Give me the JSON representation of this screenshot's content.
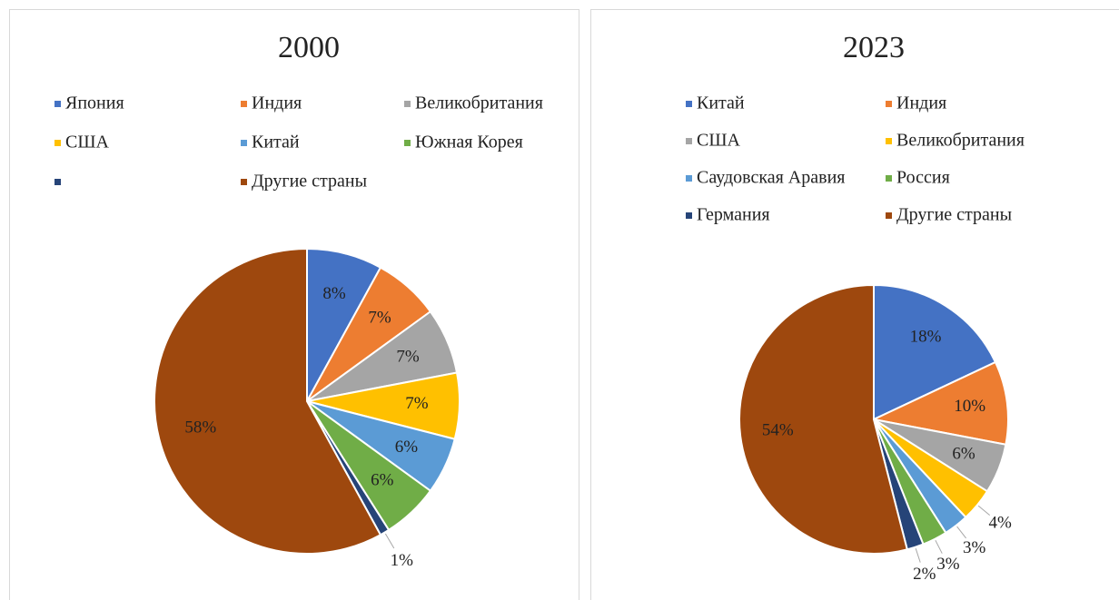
{
  "chart_data": [
    {
      "type": "pie",
      "title": "2000",
      "categories": [
        "Япония",
        "Индия",
        "Великобритания",
        "США",
        "Китай",
        "Южная Корея",
        null,
        "Другие страны"
      ],
      "values": [
        8,
        7,
        7,
        7,
        6,
        6,
        1,
        58
      ],
      "value_labels": [
        "8%",
        "7%",
        "7%",
        "7%",
        "6%",
        "6%",
        "1%",
        "58%"
      ],
      "colors": [
        "#4472c4",
        "#ed7d31",
        "#a5a5a5",
        "#ffc000",
        "#5b9bd5",
        "#70ad47",
        "#264478",
        "#9e480e"
      ],
      "legend": "top"
    },
    {
      "type": "pie",
      "title": "2023",
      "categories": [
        "Китай",
        "Индия",
        "США",
        "Великобритания",
        "Саудовская Аравия",
        "Россия",
        "Германия",
        "Другие страны"
      ],
      "values": [
        18,
        10,
        6,
        4,
        3,
        3,
        2,
        54
      ],
      "value_labels": [
        "18%",
        "10%",
        "6%",
        "4%",
        "3%",
        "3%",
        "2%",
        "54%"
      ],
      "colors": [
        "#4472c4",
        "#ed7d31",
        "#a5a5a5",
        "#ffc000",
        "#5b9bd5",
        "#70ad47",
        "#264478",
        "#9e480e"
      ],
      "legend": "top"
    }
  ]
}
